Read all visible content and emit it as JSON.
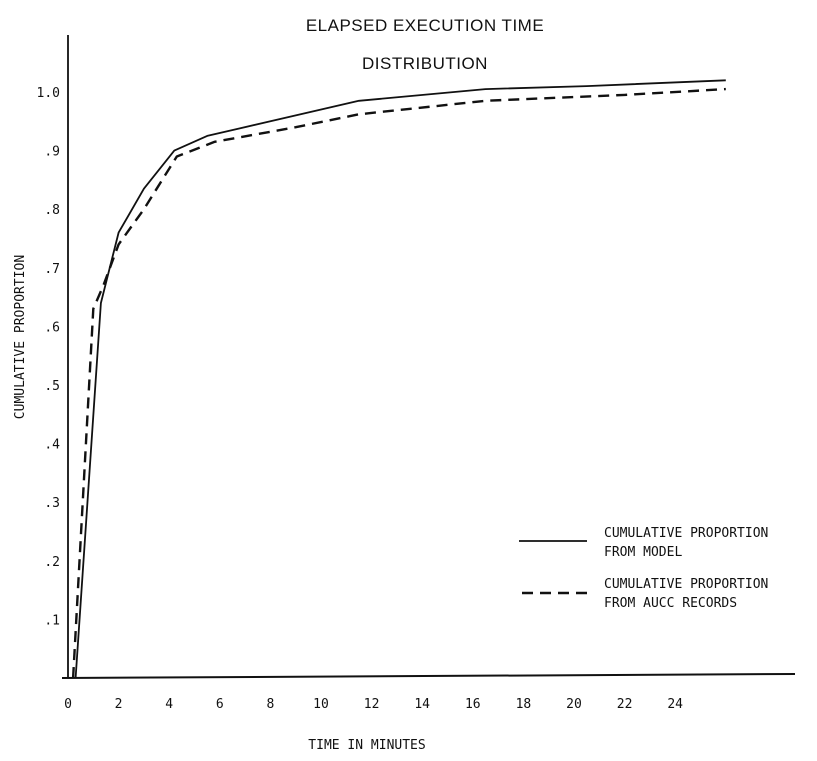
{
  "chart_data": {
    "type": "line",
    "title": "ELAPSED EXECUTION TIME",
    "subtitle": "DISTRIBUTION",
    "xlabel": "TIME IN MINUTES",
    "ylabel": "CUMULATIVE PROPORTION",
    "xlim": [
      0,
      26
    ],
    "ylim": [
      0,
      1.05
    ],
    "x_ticks": [
      0,
      2,
      4,
      6,
      8,
      10,
      12,
      14,
      16,
      18,
      20,
      22,
      24
    ],
    "x_tick_labels": [
      "0",
      "2",
      "4",
      "6",
      "8",
      "10",
      "12",
      "14",
      "16",
      "18",
      "20",
      "22",
      "24"
    ],
    "y_ticks": [
      0.1,
      0.2,
      0.3,
      0.4,
      0.5,
      0.6,
      0.7,
      0.8,
      0.9,
      1.0
    ],
    "y_tick_labels": [
      ".1",
      ".2",
      ".3",
      ".4",
      ".5",
      ".6",
      ".7",
      ".8",
      ".9",
      "1.0"
    ],
    "grid": false,
    "legend_position": "right",
    "series": [
      {
        "name": "CUMULATIVE PROPORTION\nFROM MODEL",
        "line_style": "solid",
        "color": "#111111",
        "x": [
          0.3,
          1.3,
          2.0,
          3.0,
          4.2,
          5.5,
          8.0,
          11.5,
          16.5,
          20.5,
          26.0
        ],
        "y": [
          0.0,
          0.64,
          0.76,
          0.835,
          0.9,
          0.925,
          0.95,
          0.985,
          1.005,
          1.01,
          1.02
        ]
      },
      {
        "name": "CUMULATIVE PROPORTION\nFROM AUCC RECORDS",
        "line_style": "dashed",
        "color": "#111111",
        "x": [
          0.2,
          1.0,
          1.4,
          2.0,
          3.0,
          4.3,
          5.8,
          9.0,
          11.5,
          16.5,
          22.0,
          26.0
        ],
        "y": [
          0.0,
          0.63,
          0.67,
          0.74,
          0.8,
          0.89,
          0.915,
          0.94,
          0.962,
          0.985,
          0.995,
          1.005
        ]
      }
    ],
    "legend": [
      {
        "line1": "CUMULATIVE PROPORTION",
        "line2": "FROM MODEL",
        "line_style": "solid"
      },
      {
        "line1": "CUMULATIVE PROPORTION",
        "line2": "FROM AUCC RECORDS",
        "line_style": "dashed"
      }
    ]
  }
}
